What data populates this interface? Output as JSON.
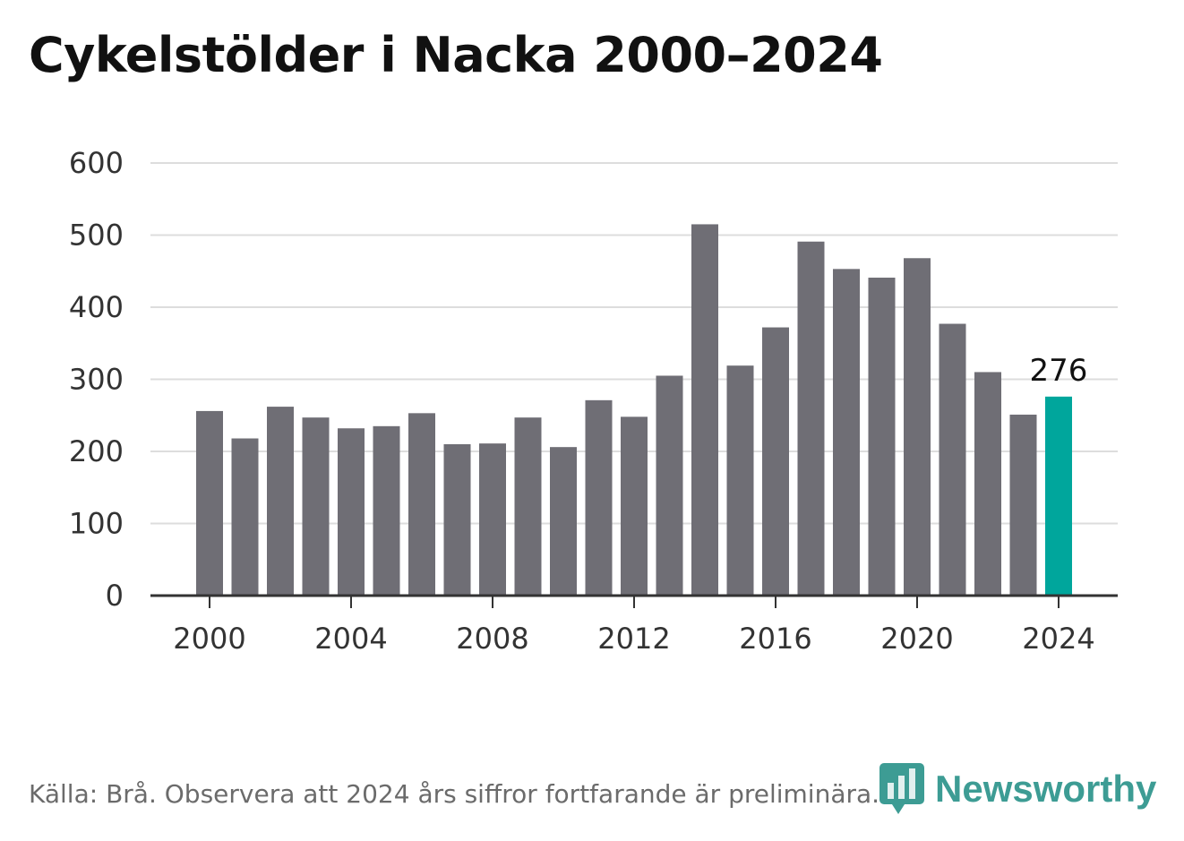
{
  "title": "Cykelstölder i Nacka 2000–2024",
  "footer": "Källa: Brå. Observera att 2024 års siffror fortfarande är preliminära.",
  "brand": {
    "name": "Newsworthy",
    "icon": "newsworthy-logo-icon",
    "color": "#3d9c94"
  },
  "chart_data": {
    "type": "bar",
    "title": "Cykelstölder i Nacka 2000–2024",
    "xlabel": "",
    "ylabel": "",
    "categories": [
      2000,
      2001,
      2002,
      2003,
      2004,
      2005,
      2006,
      2007,
      2008,
      2009,
      2010,
      2011,
      2012,
      2013,
      2014,
      2015,
      2016,
      2017,
      2018,
      2019,
      2020,
      2021,
      2022,
      2023,
      2024
    ],
    "values": [
      256,
      218,
      262,
      247,
      232,
      235,
      253,
      210,
      211,
      247,
      206,
      271,
      248,
      305,
      515,
      319,
      372,
      491,
      453,
      441,
      468,
      377,
      310,
      251,
      276
    ],
    "ylim": [
      0,
      600
    ],
    "yticks": [
      0,
      100,
      200,
      300,
      400,
      500,
      600
    ],
    "xticks": [
      2000,
      2004,
      2008,
      2012,
      2016,
      2020,
      2024
    ],
    "grid": true,
    "bar_color": "#6f6e75",
    "highlight": {
      "category": 2024,
      "color": "#00a69c",
      "label": "276"
    },
    "gridline_color": "#dddddd",
    "axis_color": "#333333"
  }
}
